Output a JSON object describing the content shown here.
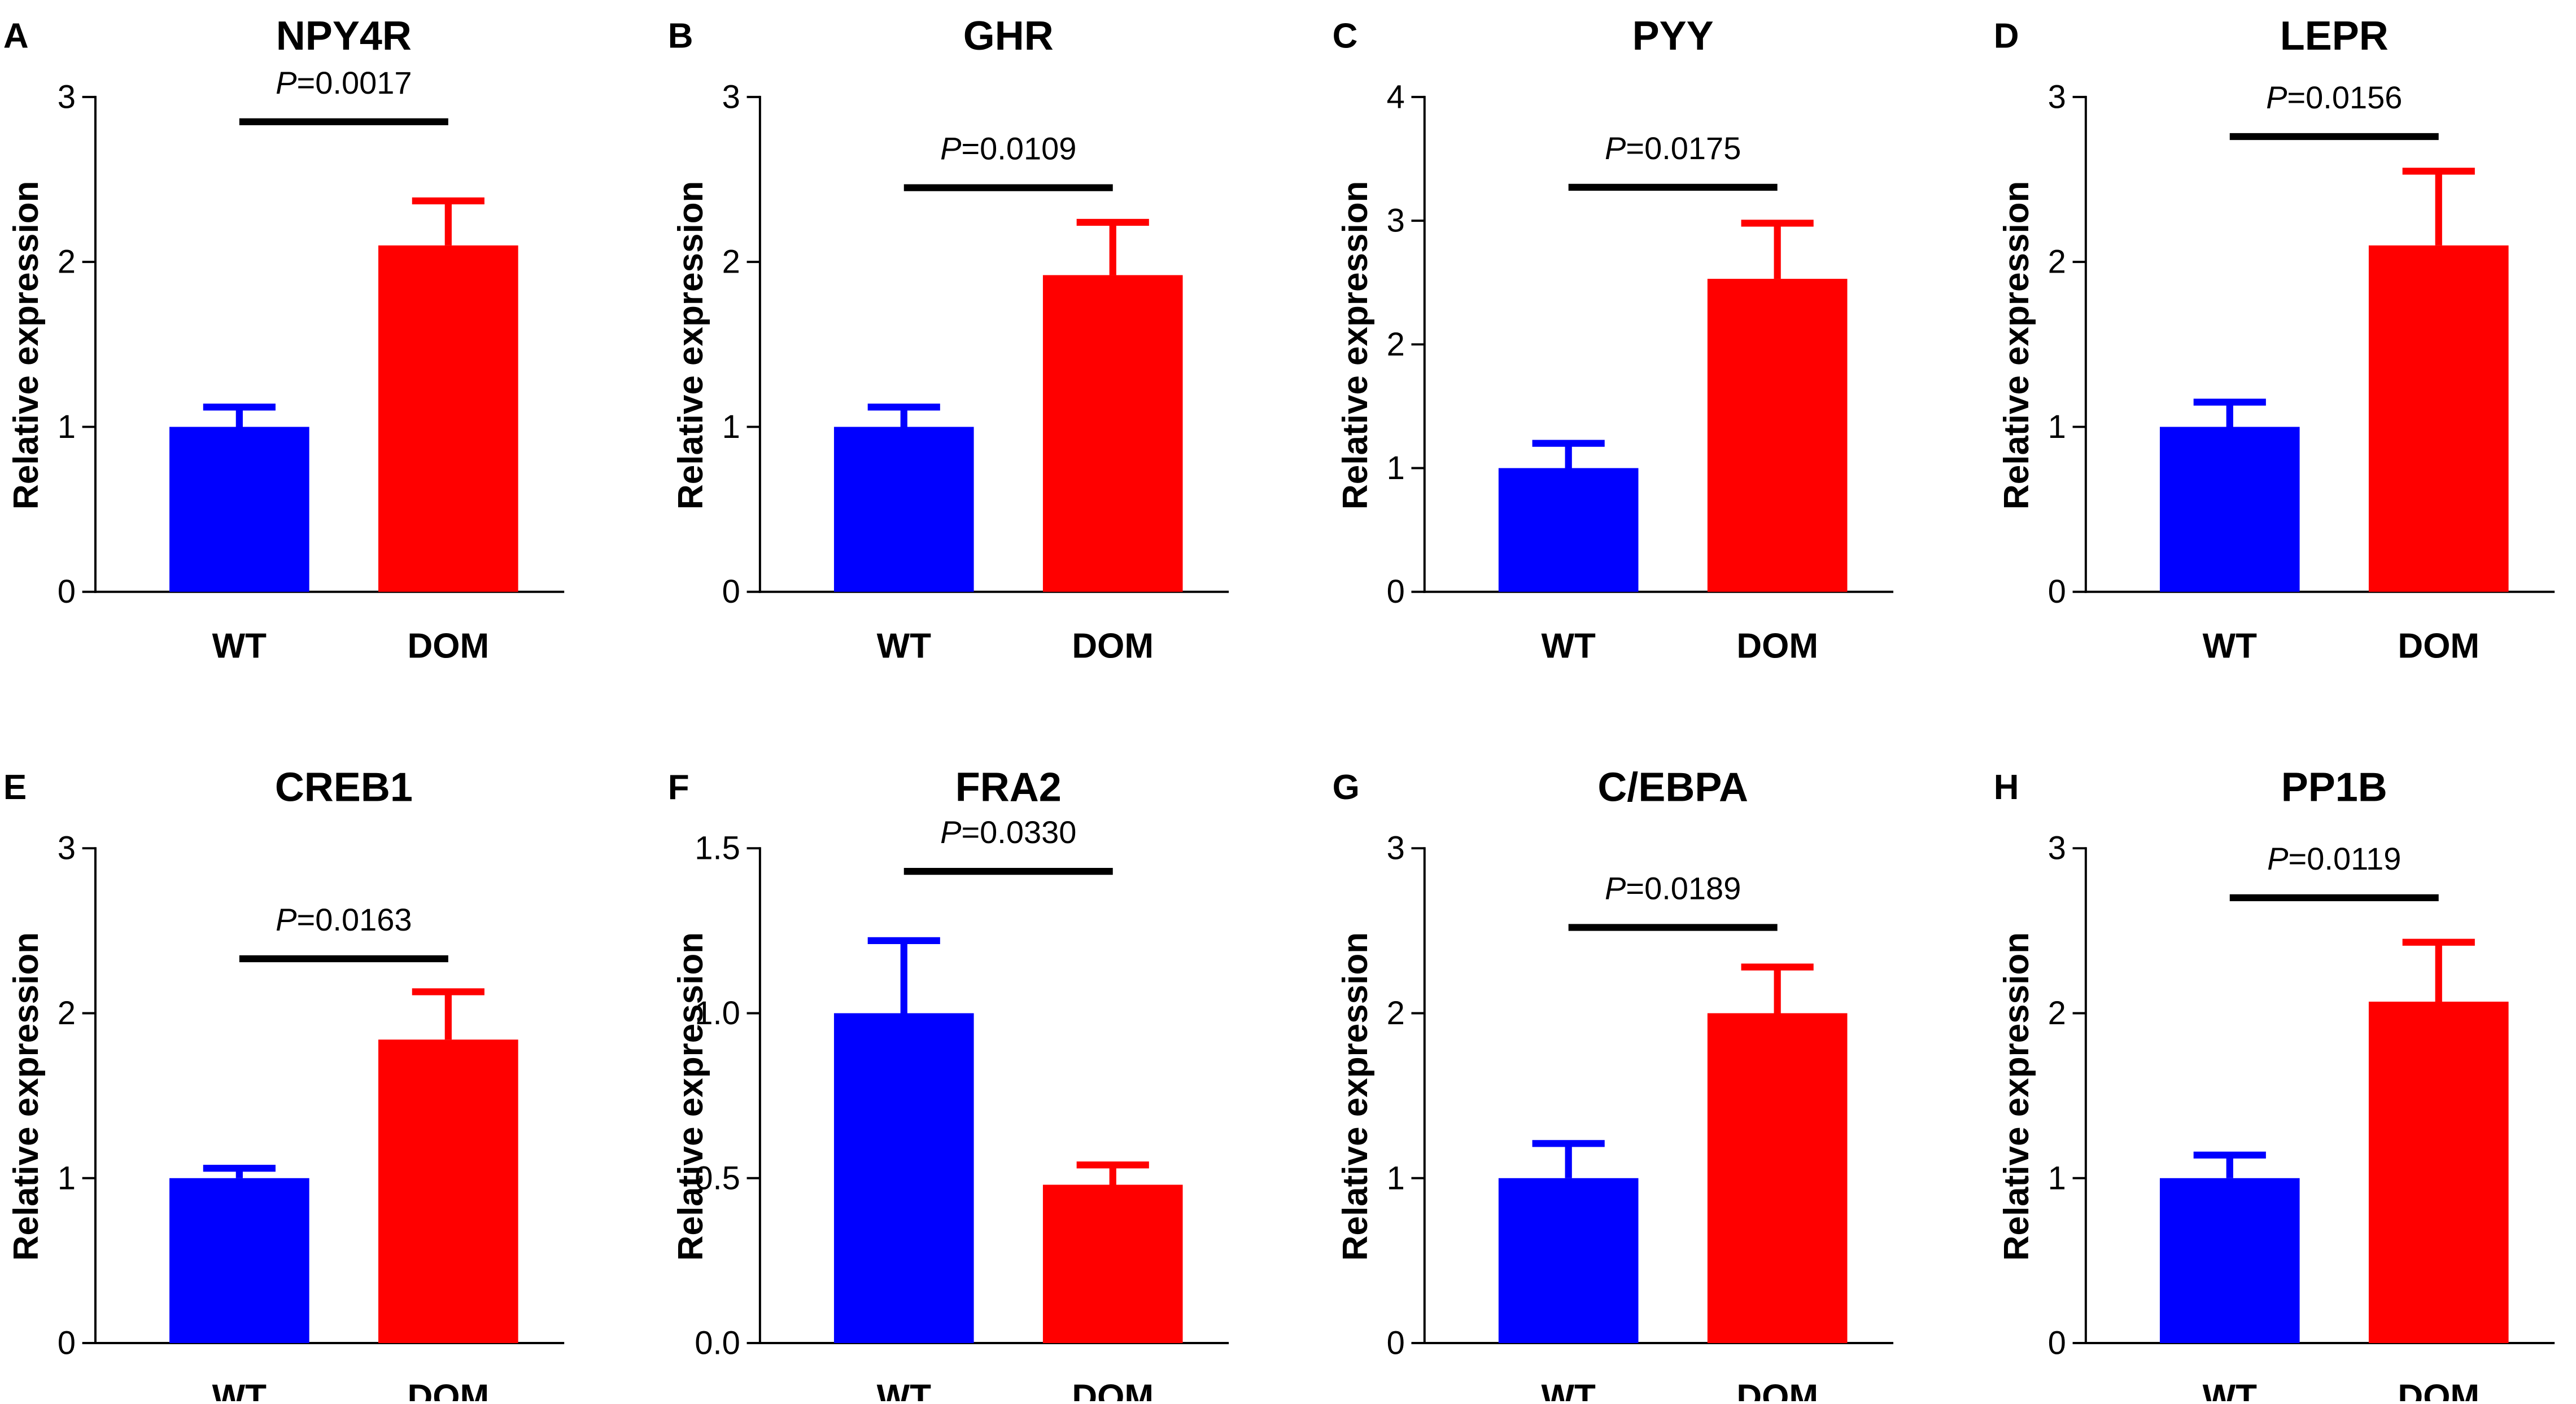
{
  "figure": {
    "description_text": ""
  },
  "chart_data": [
    {
      "panel": "A",
      "type": "bar",
      "title": "NPY4R",
      "ylabel": "Relative expression",
      "categories": [
        "WT",
        "DOM"
      ],
      "values": [
        1.0,
        2.1
      ],
      "errors": [
        0.12,
        0.27
      ],
      "colors": [
        "#0000ff",
        "#ff0000"
      ],
      "ylim": [
        0,
        3
      ],
      "yticks": [
        0,
        1,
        2,
        3
      ],
      "ytick_labels": [
        "0",
        "1",
        "2",
        "3"
      ],
      "pvalue": {
        "prefix": "P",
        "text": "=0.0017",
        "y": 2.85
      }
    },
    {
      "panel": "B",
      "type": "bar",
      "title": "GHR",
      "ylabel": "Relative expression",
      "categories": [
        "WT",
        "DOM"
      ],
      "values": [
        1.0,
        1.92
      ],
      "errors": [
        0.12,
        0.32
      ],
      "colors": [
        "#0000ff",
        "#ff0000"
      ],
      "ylim": [
        0,
        3
      ],
      "yticks": [
        0,
        1,
        2,
        3
      ],
      "ytick_labels": [
        "0",
        "1",
        "2",
        "3"
      ],
      "pvalue": {
        "prefix": "P",
        "text": "=0.0109",
        "y": 2.45
      }
    },
    {
      "panel": "C",
      "type": "bar",
      "title": "PYY",
      "ylabel": "Relative expression",
      "categories": [
        "WT",
        "DOM"
      ],
      "values": [
        1.0,
        2.53
      ],
      "errors": [
        0.2,
        0.45
      ],
      "colors": [
        "#0000ff",
        "#ff0000"
      ],
      "ylim": [
        0,
        4
      ],
      "yticks": [
        0,
        1,
        2,
        3,
        4
      ],
      "ytick_labels": [
        "0",
        "1",
        "2",
        "3",
        "4"
      ],
      "pvalue": {
        "prefix": "P",
        "text": "=0.0175",
        "y": 3.27
      }
    },
    {
      "panel": "D",
      "type": "bar",
      "title": "LEPR",
      "ylabel": "Relative expression",
      "categories": [
        "WT",
        "DOM"
      ],
      "values": [
        1.0,
        2.1
      ],
      "errors": [
        0.15,
        0.45
      ],
      "colors": [
        "#0000ff",
        "#ff0000"
      ],
      "ylim": [
        0,
        3
      ],
      "yticks": [
        0,
        1,
        2,
        3
      ],
      "ytick_labels": [
        "0",
        "1",
        "2",
        "3"
      ],
      "pvalue": {
        "prefix": "P",
        "text": "=0.0156",
        "y": 2.76
      }
    },
    {
      "panel": "E",
      "type": "bar",
      "title": "CREB1",
      "ylabel": "Relative expression",
      "categories": [
        "WT",
        "DOM"
      ],
      "values": [
        1.0,
        1.84
      ],
      "errors": [
        0.06,
        0.29
      ],
      "colors": [
        "#0000ff",
        "#ff0000"
      ],
      "ylim": [
        0,
        3
      ],
      "yticks": [
        0,
        1,
        2,
        3
      ],
      "ytick_labels": [
        "0",
        "1",
        "2",
        "3"
      ],
      "pvalue": {
        "prefix": "P",
        "text": "=0.0163",
        "y": 2.33
      }
    },
    {
      "panel": "F",
      "type": "bar",
      "title": "FRA2",
      "ylabel": "Relative expression",
      "categories": [
        "WT",
        "DOM"
      ],
      "values": [
        1.0,
        0.48
      ],
      "errors": [
        0.22,
        0.06
      ],
      "colors": [
        "#0000ff",
        "#ff0000"
      ],
      "ylim": [
        0,
        1.5
      ],
      "yticks": [
        0,
        0.5,
        1.0,
        1.5
      ],
      "ytick_labels": [
        "0.0",
        "0.5",
        "1.0",
        "1.5"
      ],
      "pvalue": {
        "prefix": "P",
        "text": "=0.0330",
        "y": 1.43
      }
    },
    {
      "panel": "G",
      "type": "bar",
      "title": "C/EBPA",
      "ylabel": "Relative expression",
      "categories": [
        "WT",
        "DOM"
      ],
      "values": [
        1.0,
        2.0
      ],
      "errors": [
        0.21,
        0.28
      ],
      "colors": [
        "#0000ff",
        "#ff0000"
      ],
      "ylim": [
        0,
        3
      ],
      "yticks": [
        0,
        1,
        2,
        3
      ],
      "ytick_labels": [
        "0",
        "1",
        "2",
        "3"
      ],
      "pvalue": {
        "prefix": "P",
        "text": "=0.0189",
        "y": 2.52
      }
    },
    {
      "panel": "H",
      "type": "bar",
      "title": "PP1B",
      "ylabel": "Relative expression",
      "categories": [
        "WT",
        "DOM"
      ],
      "values": [
        1.0,
        2.07
      ],
      "errors": [
        0.14,
        0.36
      ],
      "colors": [
        "#0000ff",
        "#ff0000"
      ],
      "ylim": [
        0,
        3
      ],
      "yticks": [
        0,
        1,
        2,
        3
      ],
      "ytick_labels": [
        "0",
        "1",
        "2",
        "3"
      ],
      "pvalue": {
        "prefix": "P",
        "text": "=0.0119",
        "y": 2.7
      }
    }
  ]
}
